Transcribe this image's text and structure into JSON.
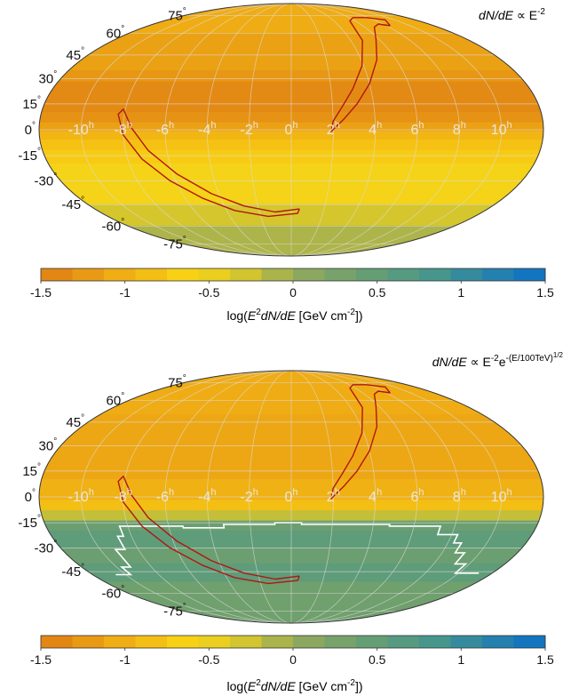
{
  "chart_data": [
    {
      "type": "heatmap",
      "projection": "mollweide",
      "title_parts": {
        "pre": "dN/dE",
        "mid": " ∝ E",
        "sup": "-2",
        "post": ""
      },
      "ra_labels": [
        "10",
        "8",
        "6",
        "4",
        "2",
        "0",
        "-2",
        "-4",
        "-6",
        "-8",
        "-10"
      ],
      "ra_unit": "h",
      "dec_labels": [
        "75",
        "60",
        "45",
        "30",
        "15",
        "0",
        "-15",
        "-30",
        "-45",
        "-60",
        "-75"
      ],
      "dec_unit": "°",
      "grid": true,
      "color_scale": {
        "min": -1.5,
        "max": 1.5,
        "tick_labels": [
          "-1.5",
          "-1",
          "-0.5",
          "0",
          "0.5",
          "1",
          "1.5"
        ],
        "label_parts": {
          "pre": "log(",
          "e": "E",
          "sup": "2",
          "rest": "dN/dE",
          "unit": " [GeV cm",
          "usup": "-2",
          "close": "])"
        }
      },
      "dec_bands": [
        {
          "dec_from": 90,
          "dec_to": 60,
          "value": -1.05
        },
        {
          "dec_from": 60,
          "dec_to": 35,
          "value": -1.15
        },
        {
          "dec_from": 35,
          "dec_to": 28,
          "value": -1.25
        },
        {
          "dec_from": 28,
          "dec_to": 10,
          "value": -1.38
        },
        {
          "dec_from": 10,
          "dec_to": 4,
          "value": -1.3
        },
        {
          "dec_from": 4,
          "dec_to": -1,
          "value": -1.15
        },
        {
          "dec_from": -1,
          "dec_to": -6,
          "value": -0.95
        },
        {
          "dec_from": -6,
          "dec_to": -12,
          "value": -0.82
        },
        {
          "dec_from": -12,
          "dec_to": -20,
          "value": -0.72
        },
        {
          "dec_from": -20,
          "dec_to": -45,
          "value": -0.55
        },
        {
          "dec_from": -45,
          "dec_to": -60,
          "value": -0.3
        },
        {
          "dec_from": -60,
          "dec_to": -90,
          "value": -0.1
        }
      ],
      "boundary_ra_dec": []
    },
    {
      "type": "heatmap",
      "projection": "mollweide",
      "title_parts": {
        "pre": "dN/dE",
        "mid": " ∝ E",
        "sup": "-2",
        "post": "e",
        "sup2": "-(E/100TeV)",
        "sup3": "1/2"
      },
      "ra_labels": [
        "10",
        "8",
        "6",
        "4",
        "2",
        "0",
        "-2",
        "-4",
        "-6",
        "-8",
        "-10"
      ],
      "ra_unit": "h",
      "dec_labels": [
        "75",
        "60",
        "45",
        "30",
        "15",
        "0",
        "-15",
        "-30",
        "-45",
        "-60",
        "-75"
      ],
      "dec_unit": "°",
      "grid": true,
      "color_scale": {
        "min": -1.5,
        "max": 1.5,
        "tick_labels": [
          "-1.5",
          "-1",
          "-0.5",
          "0",
          "0.5",
          "1",
          "1.5"
        ],
        "label_parts": {
          "pre": "log(",
          "e": "E",
          "sup": "2",
          "rest": "dN/dE",
          "unit": " [GeV cm",
          "usup": "-2",
          "close": "])"
        }
      },
      "dec_bands": [
        {
          "dec_from": 90,
          "dec_to": 50,
          "value": -1.05
        },
        {
          "dec_from": 50,
          "dec_to": 10,
          "value": -1.1
        },
        {
          "dec_from": 10,
          "dec_to": -2,
          "value": -1.0
        },
        {
          "dec_from": -2,
          "dec_to": -8,
          "value": -0.85
        },
        {
          "dec_from": -8,
          "dec_to": -14,
          "value": -0.2
        },
        {
          "dec_from": -14,
          "dec_to": -20,
          "value": 0.4
        },
        {
          "dec_from": -20,
          "dec_to": -30,
          "value": 0.55
        },
        {
          "dec_from": -30,
          "dec_to": -40,
          "value": 0.4
        },
        {
          "dec_from": -40,
          "dec_to": -52,
          "value": 0.55
        },
        {
          "dec_from": -52,
          "dec_to": -90,
          "value": 0.35
        }
      ],
      "boundary_ra_dec": [
        [
          11.2,
          -46
        ],
        [
          9.8,
          -46
        ],
        [
          9.8,
          -40
        ],
        [
          9.2,
          -40
        ],
        [
          9.2,
          -33
        ],
        [
          8.7,
          -33
        ],
        [
          8.7,
          -27
        ],
        [
          8.3,
          -27
        ],
        [
          8.3,
          -22
        ],
        [
          7.3,
          -22
        ],
        [
          7.3,
          -17
        ],
        [
          4.8,
          -17
        ],
        [
          4.8,
          -16
        ],
        [
          0.5,
          -16
        ],
        [
          0.5,
          -15
        ],
        [
          -0.8,
          -15
        ],
        [
          -0.8,
          -16
        ],
        [
          -3.3,
          -16
        ],
        [
          -3.3,
          -18
        ],
        [
          -5.3,
          -18
        ],
        [
          -5.3,
          -17
        ],
        [
          -8.4,
          -17
        ],
        [
          -8.4,
          -23
        ],
        [
          -8.7,
          -23
        ],
        [
          -8.7,
          -31
        ],
        [
          -9.2,
          -31
        ],
        [
          -9.2,
          -42
        ],
        [
          -9.7,
          -42
        ],
        [
          -9.7,
          -47
        ],
        [
          -10.6,
          -47
        ]
      ]
    }
  ],
  "source_contour_ra_dec": [
    [
      [
        8.3,
        66
      ],
      [
        9.1,
        71
      ],
      [
        7.8,
        73
      ],
      [
        6.4,
        73
      ],
      [
        5.5,
        70
      ],
      [
        4.8,
        55
      ],
      [
        3.9,
        38
      ],
      [
        3.1,
        24
      ],
      [
        2.5,
        14
      ],
      [
        2.0,
        5
      ],
      [
        1.9,
        -1
      ],
      [
        2.5,
        6
      ],
      [
        3.2,
        15
      ],
      [
        4.0,
        27
      ],
      [
        4.9,
        42
      ],
      [
        5.8,
        56
      ],
      [
        6.8,
        65
      ],
      [
        7.6,
        67.5
      ],
      [
        8.3,
        66
      ]
    ],
    [
      [
        0.5,
        -48
      ],
      [
        0.4,
        -51
      ],
      [
        -1.5,
        -53
      ],
      [
        -3.5,
        -49
      ],
      [
        -5.0,
        -41
      ],
      [
        -6.3,
        -30
      ],
      [
        -7.3,
        -17
      ],
      [
        -8.0,
        -3
      ],
      [
        -8.3,
        9
      ],
      [
        -8.1,
        12
      ],
      [
        -7.6,
        1
      ],
      [
        -6.9,
        -12
      ],
      [
        -5.8,
        -26
      ],
      [
        -4.4,
        -38
      ],
      [
        -2.8,
        -46
      ],
      [
        -1.0,
        -50
      ],
      [
        0.5,
        -48
      ]
    ]
  ]
}
